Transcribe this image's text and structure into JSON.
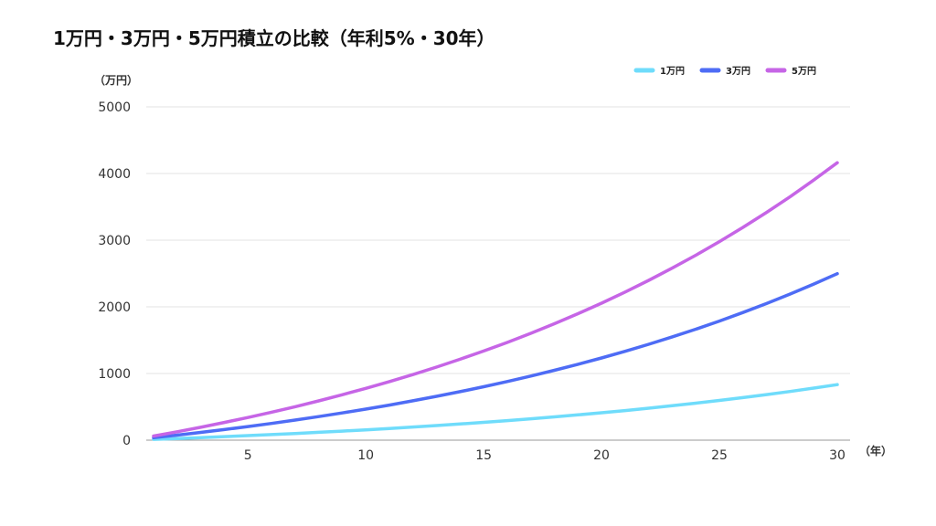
{
  "chart_data": {
    "type": "line",
    "title": "1万円・3万円・5万円積立の比較（年利5%・30年）",
    "xlabel": "（年）",
    "ylabel": "（万円）",
    "xlim": [
      1,
      30
    ],
    "ylim": [
      0,
      5000
    ],
    "xticks": [
      5,
      10,
      15,
      20,
      25,
      30
    ],
    "yticks": [
      0,
      1000,
      2000,
      3000,
      4000,
      5000
    ],
    "grid": true,
    "legend_position": "top-right",
    "x": [
      1,
      2,
      3,
      4,
      5,
      6,
      7,
      8,
      9,
      10,
      11,
      12,
      13,
      14,
      15,
      16,
      17,
      18,
      19,
      20,
      21,
      22,
      23,
      24,
      25,
      26,
      27,
      28,
      29,
      30
    ],
    "series": [
      {
        "name": "1万円",
        "color": "#6fdcfb",
        "values": [
          12.3,
          25.2,
          38.8,
          53.0,
          68.0,
          83.8,
          100.3,
          117.8,
          136.1,
          155.3,
          175.5,
          196.8,
          219.1,
          242.6,
          267.3,
          293.3,
          320.6,
          349.2,
          379.4,
          411.1,
          444.4,
          479.4,
          516.2,
          554.9,
          595.6,
          638.4,
          683.3,
          730.5,
          780.2,
          832.4
        ]
      },
      {
        "name": "3万円",
        "color": "#4e6cf5",
        "values": [
          36.8,
          75.6,
          116.3,
          159.1,
          204.0,
          251.3,
          301.0,
          353.3,
          408.2,
          465.8,
          526.5,
          590.3,
          657.4,
          727.8,
          801.9,
          879.8,
          961.7,
          1047.7,
          1138.1,
          1233.2,
          1333.2,
          1438.3,
          1548.7,
          1664.8,
          1786.8,
          1915.1,
          2049.9,
          2191.6,
          2340.6,
          2497.2
        ]
      },
      {
        "name": "5万円",
        "color": "#c665e6",
        "values": [
          61.4,
          126.0,
          193.8,
          265.1,
          340.0,
          418.9,
          501.7,
          588.8,
          680.3,
          776.4,
          877.6,
          983.9,
          1095.6,
          1213.1,
          1336.6,
          1466.3,
          1602.8,
          1746.2,
          1896.9,
          2055.4,
          2222.0,
          2397.1,
          2581.1,
          2774.6,
          2978.0,
          3191.8,
          3416.5,
          3652.7,
          3901.0,
          4162.0
        ]
      }
    ]
  }
}
